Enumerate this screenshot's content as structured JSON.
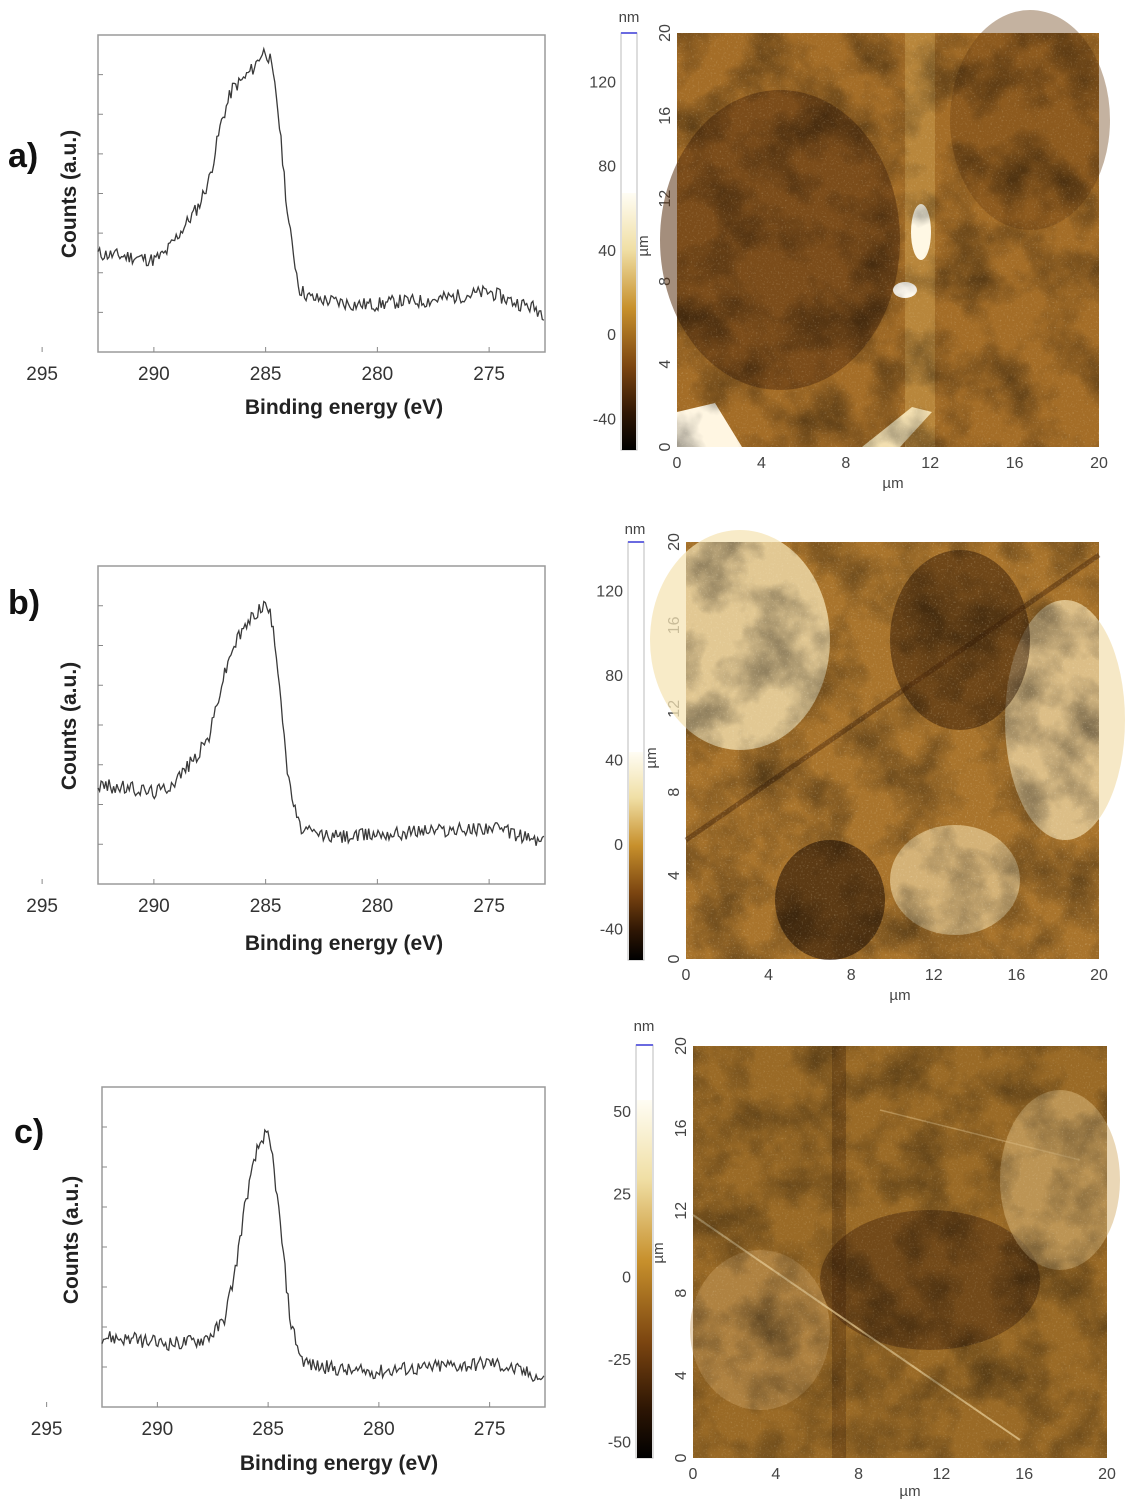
{
  "chart_data": [
    {
      "panel": "a)",
      "type": "line",
      "xlabel": "Binding energy (eV)",
      "ylabel": "Counts (a.u.)",
      "xlim": [
        292.5,
        272.5
      ],
      "x_ticks": [
        295,
        290,
        285,
        280,
        275
      ],
      "ylim": [
        0,
        1
      ],
      "series": [
        {
          "x": [
            292.5,
            291,
            290,
            289.5,
            289,
            288.5,
            288,
            287.5,
            287,
            286.5,
            286,
            285.5,
            285.2,
            285,
            284.8,
            284.5,
            284.2,
            284,
            283.5,
            283,
            282,
            281,
            280,
            279,
            278,
            277,
            276,
            275,
            274,
            273,
            272.5
          ],
          "y": [
            0.31,
            0.3,
            0.29,
            0.31,
            0.36,
            0.41,
            0.46,
            0.55,
            0.72,
            0.83,
            0.86,
            0.9,
            0.94,
            0.95,
            0.92,
            0.8,
            0.58,
            0.42,
            0.2,
            0.17,
            0.16,
            0.15,
            0.15,
            0.16,
            0.16,
            0.17,
            0.18,
            0.19,
            0.16,
            0.14,
            0.12
          ]
        }
      ]
    },
    {
      "panel": "",
      "type": "heatmap",
      "xlabel": "µm",
      "ylabel": "µm",
      "xlim": [
        0,
        20
      ],
      "ylim": [
        0,
        20
      ],
      "x_ticks": [
        0,
        4,
        8,
        12,
        16,
        20
      ],
      "y_ticks": [
        0,
        4,
        8,
        12,
        16,
        20
      ],
      "colorbar": {
        "unit": "nm",
        "ticks": [
          120,
          80,
          40,
          0,
          -40
        ],
        "range": [
          -55,
          143
        ]
      }
    },
    {
      "panel": "b)",
      "type": "line",
      "xlabel": "Binding energy (eV)",
      "ylabel": "Counts (a.u.)",
      "xlim": [
        292.5,
        272.5
      ],
      "x_ticks": [
        295,
        290,
        285,
        280,
        275
      ],
      "ylim": [
        0,
        1
      ],
      "series": [
        {
          "x": [
            292.5,
            291,
            290,
            289.5,
            289,
            288.5,
            288,
            287.5,
            287,
            286.5,
            286,
            285.5,
            285.2,
            285,
            284.8,
            284.5,
            284.2,
            284,
            283.5,
            283,
            282,
            281,
            280,
            279,
            278,
            277,
            276,
            275,
            274,
            273,
            272.5
          ],
          "y": [
            0.31,
            0.3,
            0.29,
            0.3,
            0.33,
            0.37,
            0.41,
            0.47,
            0.62,
            0.74,
            0.8,
            0.85,
            0.87,
            0.88,
            0.85,
            0.72,
            0.5,
            0.33,
            0.18,
            0.16,
            0.15,
            0.15,
            0.16,
            0.16,
            0.17,
            0.17,
            0.17,
            0.18,
            0.16,
            0.14,
            0.13
          ]
        }
      ]
    },
    {
      "panel": "",
      "type": "heatmap",
      "xlabel": "µm",
      "ylabel": "µm",
      "xlim": [
        0,
        20
      ],
      "ylim": [
        0,
        20
      ],
      "x_ticks": [
        0,
        4,
        8,
        12,
        16,
        20
      ],
      "y_ticks": [
        0,
        4,
        8,
        12,
        16,
        20
      ],
      "colorbar": {
        "unit": "nm",
        "ticks": [
          120,
          80,
          40,
          0,
          -40
        ],
        "range": [
          -55,
          143
        ]
      }
    },
    {
      "panel": "c)",
      "type": "line",
      "xlabel": "Binding energy (eV)",
      "ylabel": "Counts (a.u.)",
      "xlim": [
        292.5,
        272.5
      ],
      "x_ticks": [
        295,
        290,
        285,
        280,
        275
      ],
      "ylim": [
        0,
        1
      ],
      "series": [
        {
          "x": [
            292.5,
            291,
            290,
            289,
            288,
            287.5,
            287,
            286.5,
            286,
            285.5,
            285.2,
            285,
            284.8,
            284.5,
            284.2,
            284,
            283.5,
            283,
            282,
            281,
            280,
            279,
            278,
            277,
            276,
            275,
            274,
            273,
            272.5
          ],
          "y": [
            0.22,
            0.21,
            0.2,
            0.2,
            0.21,
            0.23,
            0.27,
            0.42,
            0.65,
            0.8,
            0.85,
            0.84,
            0.78,
            0.6,
            0.4,
            0.27,
            0.15,
            0.13,
            0.12,
            0.11,
            0.11,
            0.12,
            0.12,
            0.13,
            0.13,
            0.14,
            0.12,
            0.1,
            0.08
          ]
        }
      ]
    },
    {
      "panel": "",
      "type": "heatmap",
      "xlabel": "µm",
      "ylabel": "µm",
      "xlim": [
        0,
        20
      ],
      "ylim": [
        0,
        20
      ],
      "x_ticks": [
        0,
        4,
        8,
        12,
        16,
        20
      ],
      "y_ticks": [
        0,
        4,
        8,
        12,
        16,
        20
      ],
      "colorbar": {
        "unit": "nm",
        "ticks": [
          50,
          25,
          0,
          -25,
          -50
        ],
        "range": [
          -55,
          70
        ]
      }
    }
  ]
}
